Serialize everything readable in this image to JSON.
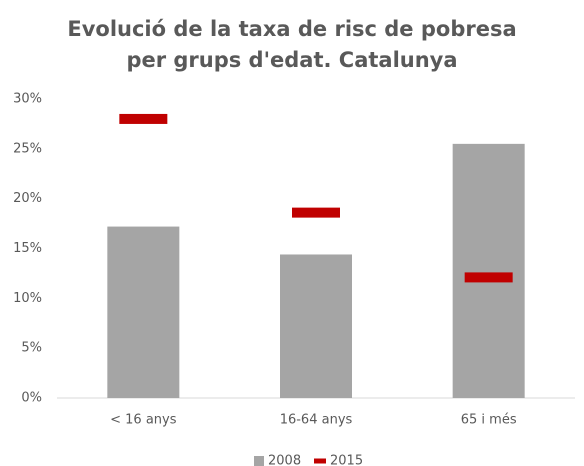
{
  "chart_data": {
    "type": "bar",
    "title": "Evolució de la taxa de risc de pobresa per grups d'edat. Catalunya",
    "categories": [
      "< 16 anys",
      "16-64 anys",
      "65 i més"
    ],
    "series": [
      {
        "name": "2008",
        "color": "#a5a5a5",
        "values": [
          17.2,
          14.4,
          25.5
        ]
      },
      {
        "name": "2015",
        "color": "#c00000",
        "values": [
          28.0,
          18.6,
          12.1
        ]
      }
    ],
    "ylim": [
      0,
      30
    ],
    "yticks": [
      {
        "value": 0,
        "label": "0%"
      },
      {
        "value": 5,
        "label": "5%"
      },
      {
        "value": 10,
        "label": "10%"
      },
      {
        "value": 15,
        "label": "15%"
      },
      {
        "value": 20,
        "label": "20%"
      },
      {
        "value": 25,
        "label": "25%"
      },
      {
        "value": 30,
        "label": "30%"
      }
    ],
    "grid": false,
    "legend": "bottom"
  }
}
